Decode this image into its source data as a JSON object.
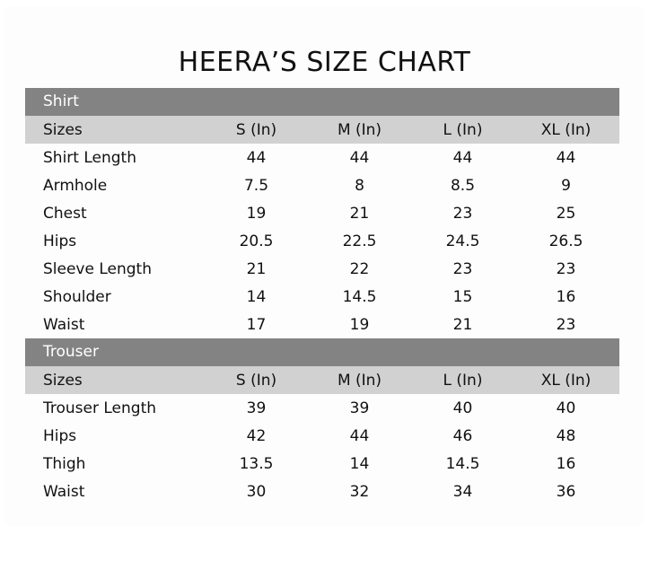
{
  "title": "HEERA’S SIZE CHART",
  "sections": [
    {
      "name": "Shirt",
      "header": [
        "Sizes",
        "S (In)",
        "M (In)",
        "L (In)",
        "XL (In)"
      ],
      "rows": [
        [
          "Shirt Length",
          "44",
          "44",
          "44",
          "44"
        ],
        [
          "Armhole",
          "7.5",
          "8",
          "8.5",
          "9"
        ],
        [
          "Chest",
          "19",
          "21",
          "23",
          "25"
        ],
        [
          "Hips",
          "20.5",
          "22.5",
          "24.5",
          "26.5"
        ],
        [
          "Sleeve Length",
          "21",
          "22",
          "23",
          "23"
        ],
        [
          "Shoulder",
          "14",
          "14.5",
          "15",
          "16"
        ],
        [
          "Waist",
          "17",
          "19",
          "21",
          "23"
        ]
      ]
    },
    {
      "name": "Trouser",
      "header": [
        "Sizes",
        "S (In)",
        "M (In)",
        "L (In)",
        "XL (In)"
      ],
      "rows": [
        [
          "Trouser Length",
          "39",
          "39",
          "40",
          "40"
        ],
        [
          "Hips",
          "42",
          "44",
          "46",
          "48"
        ],
        [
          "Thigh",
          "13.5",
          "14",
          "14.5",
          "16"
        ],
        [
          "Waist",
          "30",
          "32",
          "34",
          "36"
        ]
      ]
    }
  ],
  "colors": {
    "section_header": "#838383",
    "sizes_row": "#d1d1d1",
    "text": "#111111"
  }
}
